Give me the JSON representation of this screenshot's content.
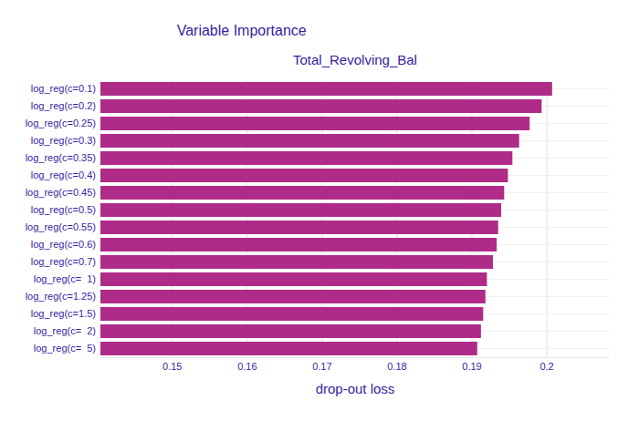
{
  "chart_data": {
    "type": "bar",
    "orientation": "horizontal",
    "title": "Variable Importance",
    "subtitle": "Total_Revolving_Bal",
    "x_label": "drop-out loss",
    "categories": [
      "log_reg(c=0.1)",
      "log_reg(c=0.2)",
      "log_reg(c=0.25)",
      "log_reg(c=0.3)",
      "log_reg(c=0.35)",
      "log_reg(c=0.4)",
      "log_reg(c=0.45)",
      "log_reg(c=0.5)",
      "log_reg(c=0.55)",
      "log_reg(c=0.6)",
      "log_reg(c=0.7)",
      "log_reg(c=  1)",
      "log_reg(c=1.25)",
      "log_reg(c=1.5)",
      "log_reg(c=  2)",
      "log_reg(c=  5)"
    ],
    "values": [
      0.2007,
      0.1993,
      0.1977,
      0.1963,
      0.1954,
      0.1948,
      0.1943,
      0.1939,
      0.1935,
      0.1933,
      0.1928,
      0.192,
      0.1918,
      0.1915,
      0.1912,
      0.1907
    ],
    "color": "#ae2c87",
    "xlim": [
      0.1404,
      0.2084
    ],
    "xticks": [
      0.15,
      0.16,
      0.17,
      0.18,
      0.19,
      0.2
    ],
    "grid": true
  }
}
